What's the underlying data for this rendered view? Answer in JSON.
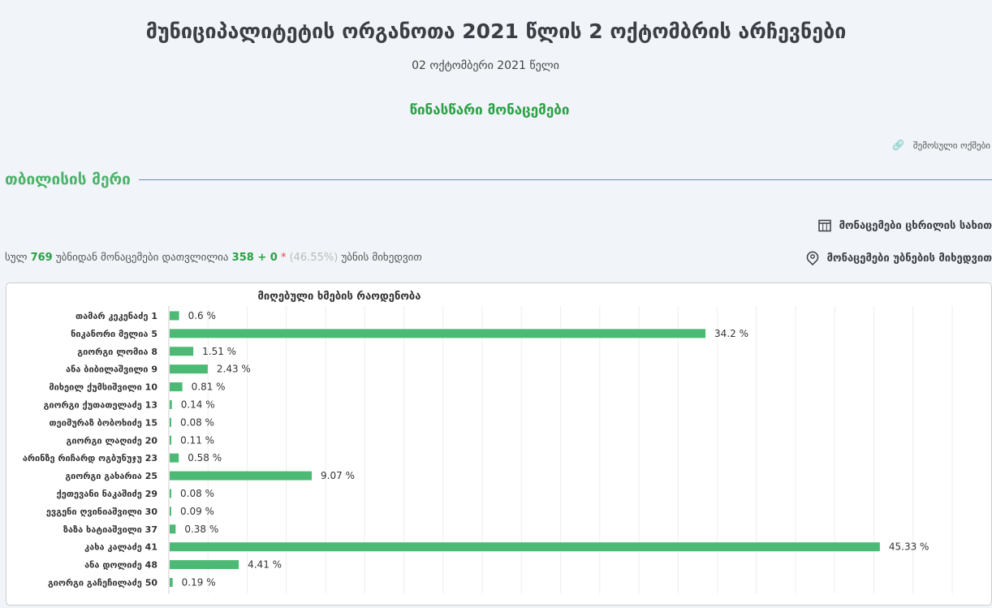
{
  "header": {
    "title": "მუნიციპალიტეტის ორგანოთა 2021 წლის 2 ოქტომბრის არჩევნები",
    "date": "02 ოქტომბერი 2021 წელი",
    "status": "წინასწარი მონაცემები",
    "protocols_link": "შემოსული ოქმები"
  },
  "section": {
    "title": "თბილისის მერი"
  },
  "summary": {
    "p1": "სულ",
    "total": "769",
    "p2": "უბნიდან მონაცემები დათვლილია",
    "counted": "358 + 0",
    "star": "*",
    "percent": "(46.55%)",
    "p3": "უბნის მიხედვით"
  },
  "actions": {
    "table": "მონაცემები ცხრილის სახით",
    "precincts": "მონაცემები უბნების მიხედვით"
  },
  "colors": {
    "bar": "#4cba74",
    "accent": "#2aa046"
  },
  "chart_data": {
    "type": "bar",
    "orientation": "horizontal",
    "title": "მიღებული ხმების რაოდენობა",
    "xlim": [
      0,
      51
    ],
    "grid": true,
    "value_suffix": " %",
    "categories": [
      "თამარ კეკენაძე 1",
      "ნიკანორი მელია 5",
      "გიორგი ლომია 8",
      "ანა ბიბილაშვილი 9",
      "მიხეილ ქუმსიშვილი 10",
      "გიორგი ქუთათელაძე 13",
      "თეიმურაზ ბობოხიძე 15",
      "გიორგი ლაღიძე 20",
      "არინზე რიჩარდ ოგბუნუჯუ 23",
      "გიორგი გახარია 25",
      "ქეთევანი ნაკაშიძე 29",
      "ევგენი ღვინიაშვილი 30",
      "ზაზა ხატიაშვილი 37",
      "კახა კალაძე 41",
      "ანა დოლიძე 48",
      "გიორგი გაჩეჩილაძე 50"
    ],
    "values": [
      0.6,
      34.2,
      1.51,
      2.43,
      0.81,
      0.14,
      0.08,
      0.11,
      0.58,
      9.07,
      0.08,
      0.09,
      0.38,
      45.33,
      4.41,
      0.19
    ]
  }
}
